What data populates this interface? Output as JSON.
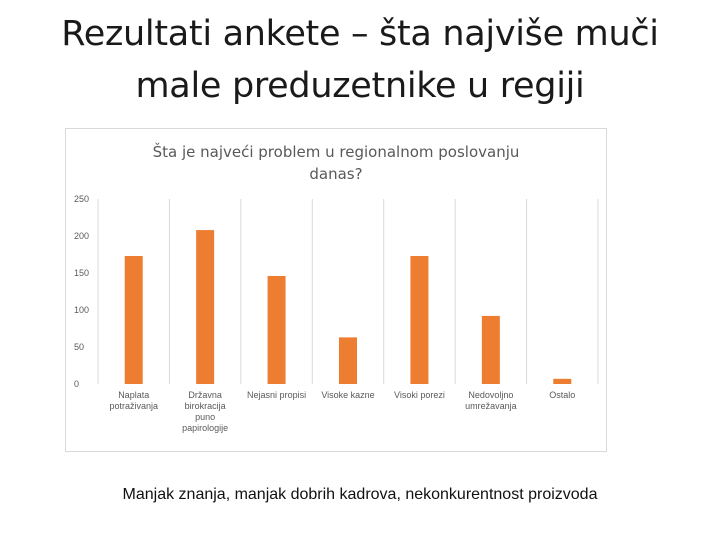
{
  "slide": {
    "title_line1": "Rezultati ankete – šta najviše muči",
    "title_line2": "male preduzetnike u regiji",
    "footnote": "Manjak znanja, manjak dobrih kadrova, nekonkurentnost proizvoda"
  },
  "chart_data": {
    "type": "bar",
    "title_lines": [
      "Šta je najveći problem u regionalnom poslovanju",
      "danas?"
    ],
    "categories": [
      [
        "Naplata",
        "potraživanja"
      ],
      [
        "Državna",
        "birokracija",
        "puno",
        "papirologije"
      ],
      [
        "Nejasni propisi"
      ],
      [
        "Visoke kazne"
      ],
      [
        "Visoki porezi"
      ],
      [
        "Nedovoljno",
        "umrežavanja"
      ],
      [
        "Ostalo"
      ]
    ],
    "values": [
      173,
      208,
      146,
      63,
      173,
      92,
      7
    ],
    "ylim": [
      0,
      250
    ],
    "yticks": [
      0,
      50,
      100,
      150,
      200,
      250
    ],
    "ytick_labels": [
      "0",
      "50",
      "100",
      "150",
      "200",
      "250"
    ],
    "xlabel": "",
    "ylabel": "",
    "grid": "vertical-lines",
    "legend": "none",
    "colors": {
      "bar": "#ED7D31",
      "grid": "#d9d9d9",
      "axis_text": "#595959",
      "title_text": "#595959"
    }
  }
}
